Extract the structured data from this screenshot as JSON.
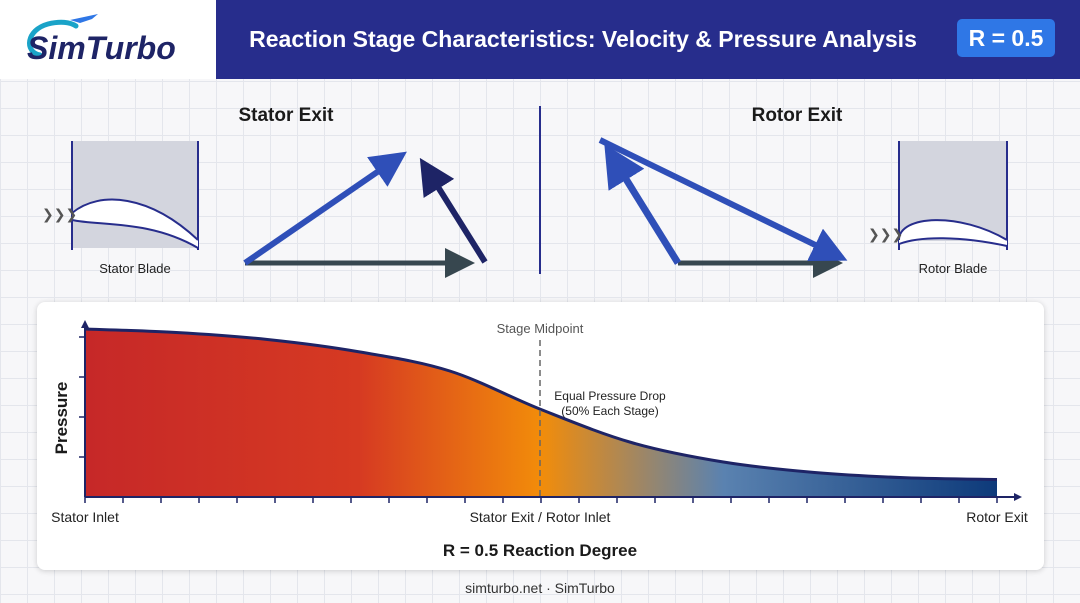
{
  "header": {
    "logo_text": "SimTurbo",
    "title": "Reaction Stage Characteristics: Velocity & Pressure Analysis",
    "badge": "R = 0.5"
  },
  "velocity": {
    "stator_title": "Stator Exit",
    "rotor_title": "Rotor Exit",
    "stator_blade_label": "Stator Blade",
    "rotor_blade_label": "Rotor Blade"
  },
  "pressure": {
    "midpoint_label": "Stage Midpoint",
    "annotation_line1": "Equal Pressure Drop",
    "annotation_line2": "(50% Each Stage)",
    "ylabel": "Pressure",
    "x_left": "Stator Inlet",
    "x_mid": "Stator Exit / Rotor Inlet",
    "x_right": "Rotor Exit",
    "caption": "R = 0.5 Reaction Degree"
  },
  "footer": {
    "text": "simturbo.net · SimTurbo"
  },
  "colors": {
    "header_bg": "#272d8c",
    "badge_bg": "#2f77e6",
    "arrow_blue": "#2f4fb8",
    "arrow_navy": "#1e2466",
    "arrow_dark": "#37474f",
    "gradient_red": "#c62828",
    "gradient_orange": "#f28c0a",
    "gradient_blue": "#0d3a7a"
  },
  "chart_data": {
    "type": "area",
    "x": [
      0,
      0.1,
      0.2,
      0.3,
      0.4,
      0.5,
      0.6,
      0.7,
      0.8,
      0.9,
      1.0
    ],
    "values": [
      0.96,
      0.94,
      0.9,
      0.83,
      0.72,
      0.5,
      0.31,
      0.2,
      0.14,
      0.11,
      0.1
    ],
    "ylim": [
      0,
      1
    ],
    "grid": false
  }
}
